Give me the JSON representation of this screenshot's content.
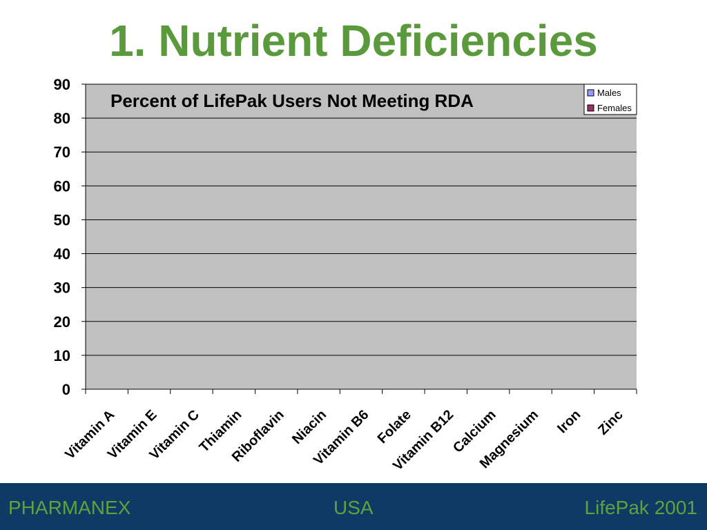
{
  "slide": {
    "title": "1. Nutrient Deficiencies"
  },
  "footer": {
    "left": "PHARMANEX",
    "center": "USA",
    "right": "LifePak 2001"
  },
  "colors": {
    "title": "#5b9a3c",
    "plot_bg": "#c0c0c0",
    "males": "#9999ff",
    "females": "#993366",
    "footer_bg": "#0f3a66",
    "footer_text": "#5ba53c"
  },
  "chart_data": {
    "type": "bar",
    "title": "Percent of LifePak Users Not Meeting RDA",
    "xlabel": "",
    "ylabel": "",
    "ylim": [
      0,
      90
    ],
    "yticks": [
      0,
      10,
      20,
      30,
      40,
      50,
      60,
      70,
      80,
      90
    ],
    "categories": [
      "Vitamin A",
      "Vitamin E",
      "Vitamin C",
      "Thiamin",
      "Riboflavin",
      "Niacin",
      "Vitamin B6",
      "Folate",
      "Vitamin B12",
      "Calcium",
      "Magnesium",
      "Iron",
      "Zinc"
    ],
    "series": [
      {
        "name": "Males",
        "color": "#9999ff",
        "values": [
          0,
          0,
          0,
          0,
          0,
          0,
          0,
          0,
          0,
          0,
          0,
          0,
          0
        ]
      },
      {
        "name": "Females",
        "color": "#993366",
        "values": [
          0,
          0,
          0,
          0,
          0,
          0,
          0,
          0,
          0,
          0,
          0,
          0,
          0
        ]
      }
    ],
    "grid": true,
    "legend": "top-right"
  }
}
